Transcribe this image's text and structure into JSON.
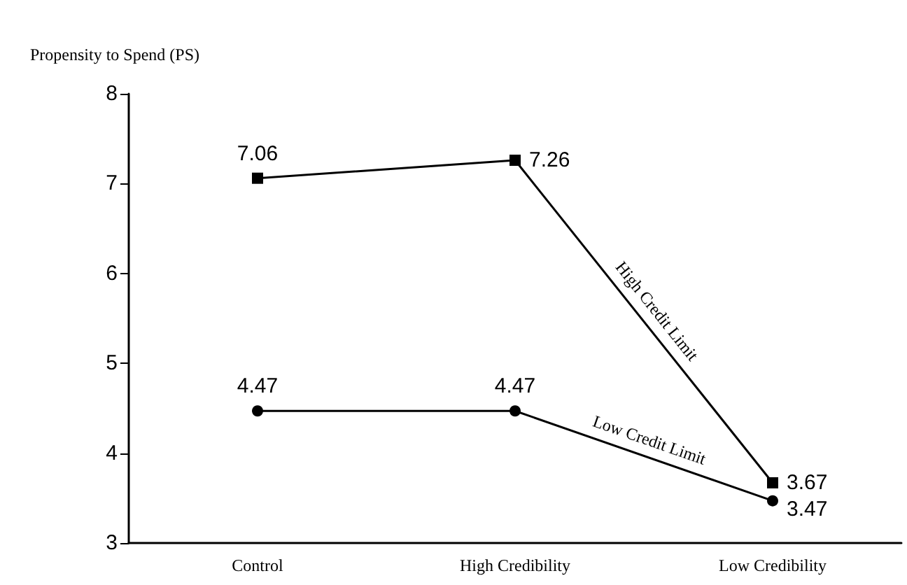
{
  "chart_data": {
    "type": "line",
    "ylabel": "Propensity to Spend (PS)",
    "categories": [
      "Control",
      "High Credibility",
      "Low Credibility"
    ],
    "series": [
      {
        "name": "High Credit Limit",
        "color": "#000000",
        "marker": "square",
        "values": [
          7.06,
          7.26,
          3.67
        ]
      },
      {
        "name": "Low Credit Limit",
        "color": "#000000",
        "marker": "circle",
        "values": [
          4.47,
          4.47,
          3.47
        ]
      }
    ],
    "ylim": [
      3,
      8
    ],
    "yticks": [
      3,
      4,
      5,
      6,
      7,
      8
    ],
    "data_labels": true,
    "grid": false,
    "legend": false,
    "line_style": "solid"
  }
}
